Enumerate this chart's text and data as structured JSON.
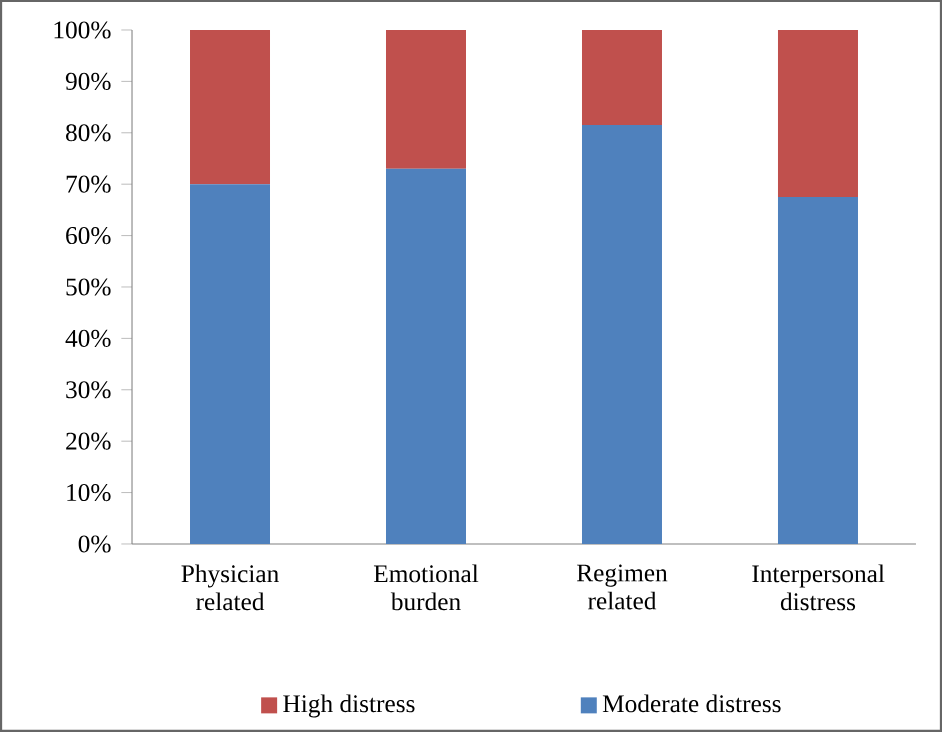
{
  "chart_data": {
    "type": "bar",
    "stacked": true,
    "categories": [
      "Physician related",
      "Emotional burden",
      "Regimen related",
      "Interpersonal distress"
    ],
    "series": [
      {
        "name": "Moderate distress",
        "color": "#4f81bd",
        "values": [
          70,
          73,
          81.5,
          67.5
        ]
      },
      {
        "name": "High distress",
        "color": "#c0504d",
        "values": [
          30,
          27,
          18.5,
          32.5
        ]
      }
    ],
    "ylim": [
      0,
      100
    ],
    "yticks": [
      {
        "value": 0,
        "label": "0%"
      },
      {
        "value": 10,
        "label": "10%"
      },
      {
        "value": 20,
        "label": "20%"
      },
      {
        "value": 30,
        "label": "30%"
      },
      {
        "value": 40,
        "label": "40%"
      },
      {
        "value": 50,
        "label": "50%"
      },
      {
        "value": 60,
        "label": "60%"
      },
      {
        "value": 70,
        "label": "70%"
      },
      {
        "value": 80,
        "label": "80%"
      },
      {
        "value": 90,
        "label": "90%"
      },
      {
        "value": 100,
        "label": "100%"
      }
    ],
    "legend": "bottom",
    "grid": false
  }
}
